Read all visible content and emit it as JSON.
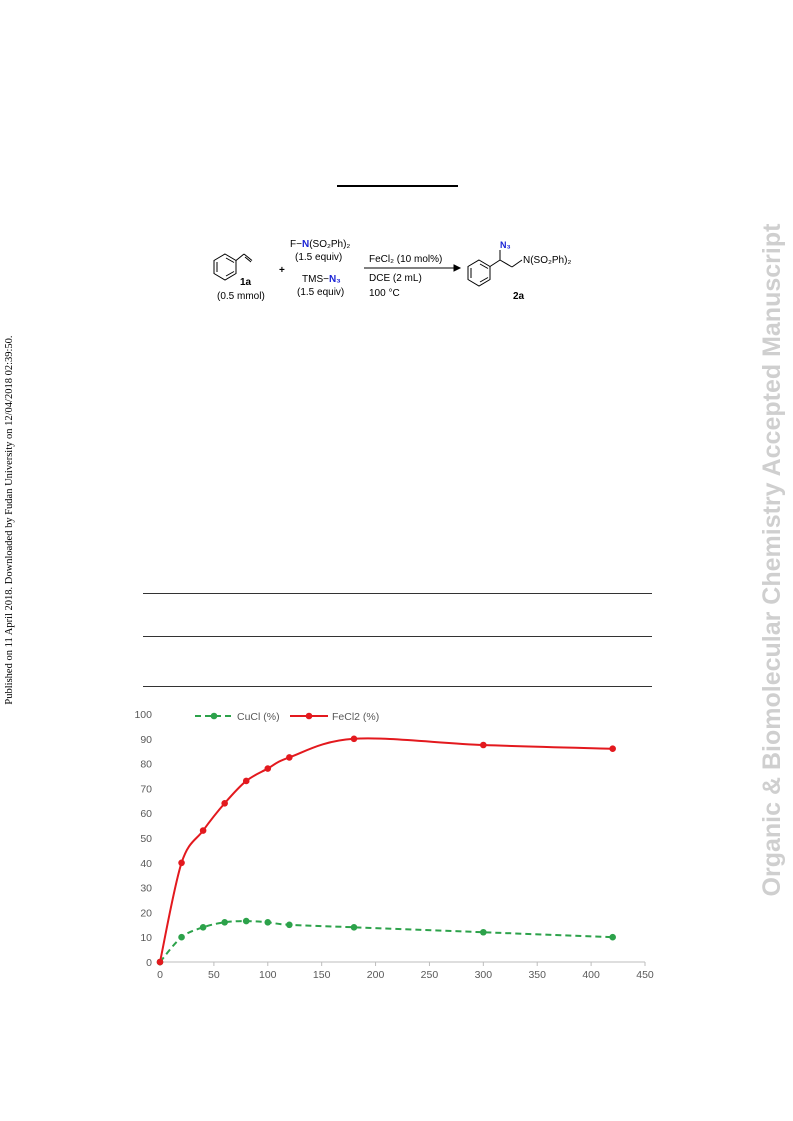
{
  "side_note": "Published on 11 April 2018. Downloaded by Fudan University on 12/04/2018 02:39:50.",
  "watermark": "Organic & Biomolecular Chemistry Accepted Manuscript",
  "scheme": {
    "reagent1_prefix": "F−",
    "reagent1_n": "N",
    "reagent1_suffix": "(SO₂Ph)₂",
    "reagent1_equiv": "(1.5 equiv)",
    "reagent2_prefix": "TMS−",
    "reagent2_n": "N₃",
    "reagent2_equiv": "(1.5 equiv)",
    "substrate_label": "1a",
    "substrate_amount": "(0.5 mmol)",
    "plus": "+",
    "catalyst": "FeCl₂ (10 mol%)",
    "solvent": "DCE (2 mL)",
    "temperature": "100 °C",
    "product_azide": "N₃",
    "product_amine": "N(SO₂Ph)₂",
    "product_label": "2a"
  },
  "chart_data": {
    "type": "line",
    "xlim": [
      0,
      450
    ],
    "ylim": [
      0,
      100
    ],
    "xticks": [
      0,
      50,
      100,
      150,
      200,
      250,
      300,
      350,
      400,
      450
    ],
    "yticks": [
      0,
      10,
      20,
      30,
      40,
      50,
      60,
      70,
      80,
      90,
      100
    ],
    "legend_position": "top-left",
    "grid": false,
    "series": [
      {
        "name": "CuCl (%)",
        "color": "#2ca24a",
        "style": "dashed",
        "x": [
          0,
          20,
          40,
          60,
          80,
          100,
          120,
          180,
          300,
          420
        ],
        "y": [
          0,
          10,
          14,
          16,
          16.5,
          16,
          15,
          14,
          12,
          10
        ]
      },
      {
        "name": "FeCl2 (%)",
        "color": "#e3191e",
        "style": "solid",
        "x": [
          0,
          20,
          40,
          60,
          80,
          100,
          120,
          180,
          300,
          420
        ],
        "y": [
          0,
          40,
          53,
          64,
          73,
          78,
          82.5,
          90,
          87.5,
          86
        ]
      }
    ]
  }
}
